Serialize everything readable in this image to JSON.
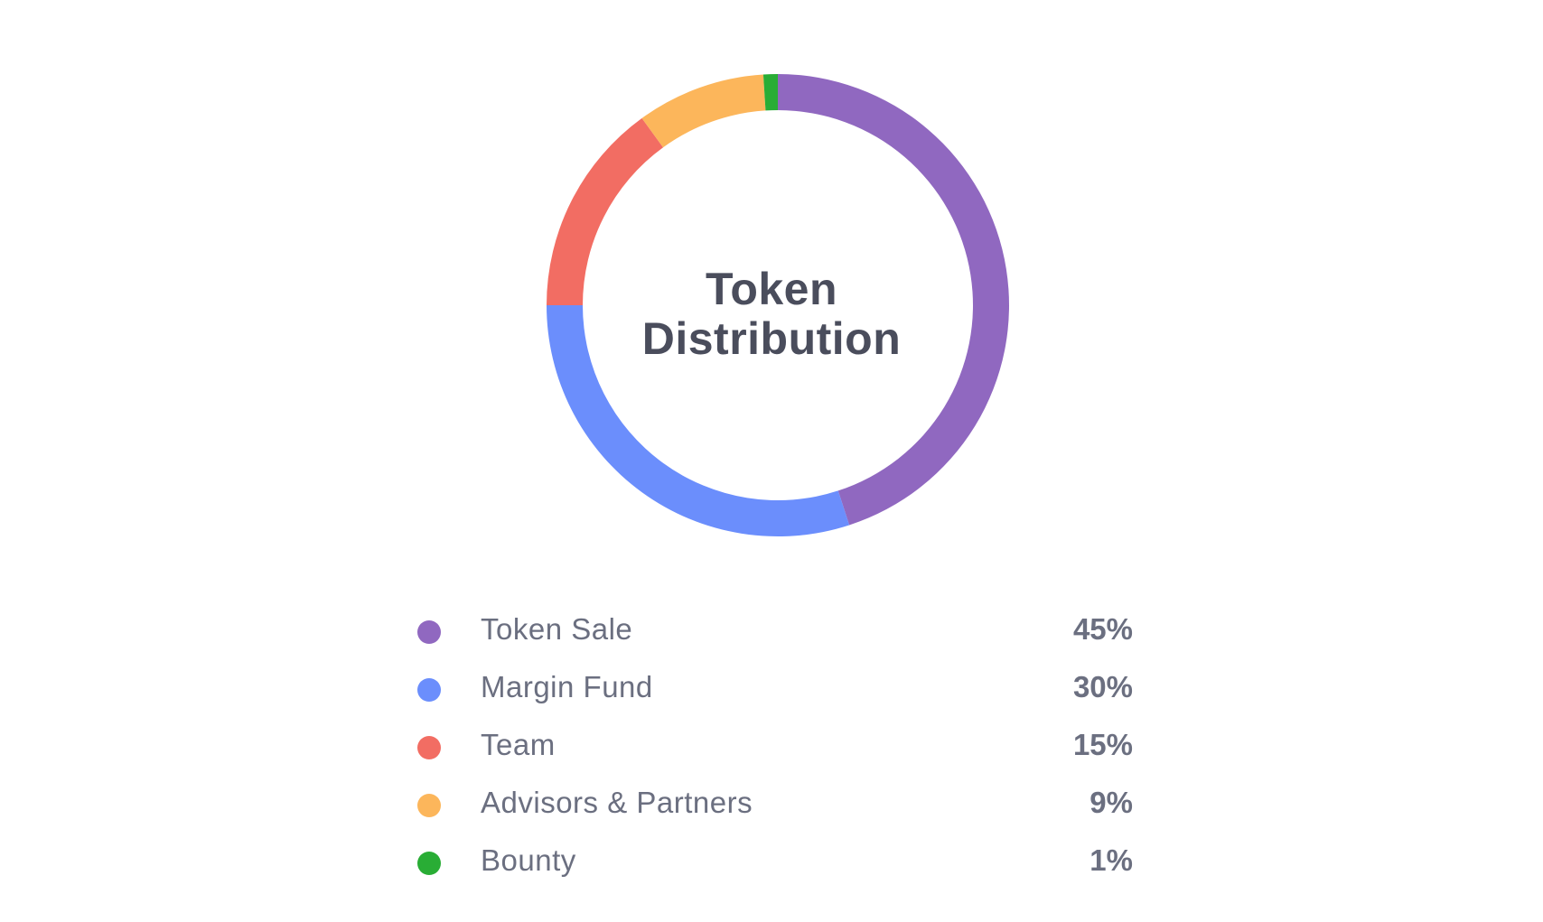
{
  "chart_data": {
    "type": "pie",
    "title": "Token Distribution",
    "title_lines": [
      "Token",
      "Distribution"
    ],
    "categories": [
      "Token Sale",
      "Margin Fund",
      "Team",
      "Advisors & Partners",
      "Bounty"
    ],
    "values": [
      45,
      30,
      15,
      9,
      1
    ],
    "value_labels": [
      "45%",
      "30%",
      "15%",
      "9%",
      "1%"
    ],
    "colors": [
      "#9068c0",
      "#6b8efc",
      "#f26d63",
      "#fcb65b",
      "#29ad35"
    ],
    "donut": true,
    "legend_position": "bottom"
  }
}
